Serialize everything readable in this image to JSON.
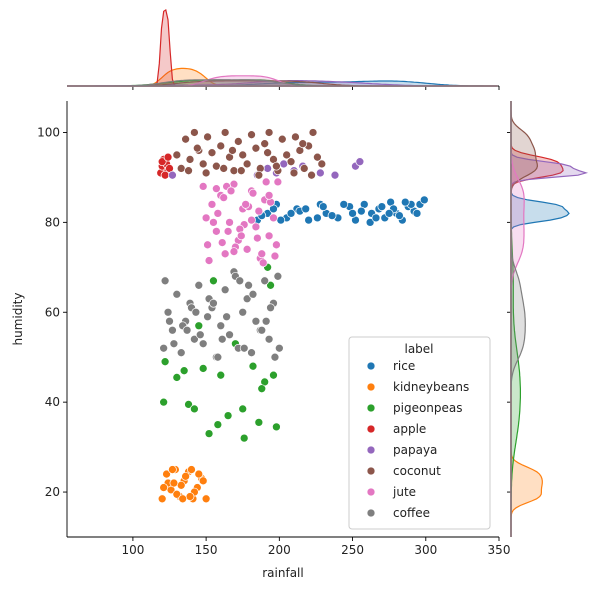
{
  "chart_data": {
    "type": "scatter",
    "title": "",
    "xlabel": "rainfall",
    "ylabel": "humidity",
    "xlim": [
      55,
      350
    ],
    "ylim": [
      10,
      107
    ],
    "xticks": [
      100,
      150,
      200,
      250,
      300,
      350
    ],
    "yticks": [
      20,
      40,
      60,
      80,
      100
    ],
    "grid": false,
    "legend": {
      "title": "label",
      "placement": "lower-right"
    },
    "marginal": {
      "top": "kde of rainfall per label",
      "right": "kde of humidity per label"
    },
    "series": [
      {
        "name": "rice",
        "color": "#1f77b4",
        "x": [
          185,
          192,
          198,
          205,
          212,
          220,
          228,
          232,
          240,
          248,
          252,
          258,
          263,
          268,
          272,
          276,
          280,
          284,
          288,
          292,
          296,
          299,
          196,
          214,
          236,
          256,
          270,
          282,
          290,
          208,
          226,
          244,
          262,
          278,
          294,
          188,
          218,
          250,
          286,
          201,
          230,
          266,
          275
        ],
        "y": [
          80.5,
          82,
          84,
          81,
          83,
          80.5,
          84,
          82,
          81,
          83.5,
          80.5,
          84,
          82,
          83,
          81,
          84.5,
          82,
          80.5,
          83.5,
          82.5,
          84,
          85,
          83,
          82.5,
          81.5,
          82.5,
          83.5,
          81.5,
          84,
          82,
          81,
          84,
          80,
          83,
          82,
          81.5,
          83,
          82,
          84.5,
          80.5,
          83.5,
          81,
          82
        ]
      },
      {
        "name": "kidneybeans",
        "color": "#ff7f0e",
        "x": [
          120,
          123,
          126,
          129,
          132,
          135,
          138,
          141,
          144,
          147,
          150,
          124,
          130,
          136,
          142,
          148,
          127,
          133,
          139,
          145,
          121,
          134,
          140,
          128
        ],
        "y": [
          18.5,
          24,
          20.5,
          25,
          19,
          22.5,
          24.5,
          18.5,
          21,
          23,
          18.5,
          22,
          19.5,
          23.5,
          20,
          22.5,
          25,
          21.5,
          19,
          24,
          21,
          18.5,
          25,
          22
        ]
      },
      {
        "name": "pigeonpeas",
        "color": "#2ca02c",
        "x": [
          121,
          122,
          130,
          138,
          142,
          152,
          158,
          176,
          186,
          190,
          196,
          198,
          160,
          148,
          135,
          170,
          182,
          188,
          194,
          165,
          155,
          145,
          175,
          192
        ],
        "y": [
          40,
          49,
          45.5,
          39.5,
          38.5,
          33,
          35,
          32,
          35.5,
          44.5,
          46,
          34.5,
          46,
          47.5,
          47,
          53,
          48,
          43,
          66,
          37,
          67,
          57,
          38.5,
          70
        ]
      },
      {
        "name": "apple",
        "color": "#d62728",
        "x": [
          119,
          120,
          121,
          122,
          123,
          124,
          125,
          120,
          122,
          124
        ],
        "y": [
          91,
          92.5,
          94,
          90.5,
          93,
          91.5,
          92,
          93.5,
          90.5,
          94.5
        ]
      },
      {
        "name": "papaya",
        "color": "#9467bd",
        "x": [
          127,
          192,
          198,
          203,
          210,
          216,
          228,
          238,
          252,
          255,
          185
        ],
        "y": [
          90.5,
          92,
          91,
          93,
          91.5,
          92.5,
          91,
          90.5,
          92.5,
          93.5,
          90.5
        ]
      },
      {
        "name": "coconut",
        "color": "#8c564b",
        "x": [
          130,
          133,
          136,
          139,
          142,
          145,
          148,
          151,
          154,
          157,
          160,
          163,
          166,
          169,
          172,
          175,
          178,
          181,
          184,
          187,
          190,
          193,
          196,
          199,
          202,
          205,
          208,
          211,
          214,
          217,
          220,
          223,
          226,
          229,
          138,
          150,
          162,
          174,
          186,
          198,
          210,
          222,
          144,
          168,
          192,
          216
        ],
        "y": [
          95,
          92,
          98.5,
          94,
          100,
          96,
          93,
          99,
          95.5,
          92.5,
          97,
          100,
          94.5,
          91.5,
          98,
          95,
          93,
          99.5,
          96.5,
          92,
          97.5,
          100,
          94,
          91.5,
          98.5,
          95,
          93.5,
          99,
          96,
          92,
          97,
          100,
          94.5,
          93,
          91.5,
          91,
          92,
          91.5,
          90.5,
          92.5,
          91,
          90.5,
          96.5,
          96,
          95.5,
          97.5
        ]
      },
      {
        "name": "jute",
        "color": "#e377c2",
        "x": [
          148,
          151,
          154,
          157,
          160,
          163,
          166,
          169,
          172,
          175,
          178,
          181,
          184,
          187,
          190,
          193,
          196,
          199,
          152,
          158,
          164,
          170,
          176,
          182,
          188,
          194,
          155,
          161,
          167,
          173,
          179,
          185,
          191,
          197,
          150,
          162,
          174,
          186,
          198,
          157,
          169,
          181,
          193,
          165,
          177,
          189
        ],
        "y": [
          88,
          75,
          84,
          78,
          86,
          73,
          80,
          88.5,
          76,
          83,
          74,
          87,
          79,
          72,
          85,
          77,
          81,
          89,
          71.5,
          82,
          88,
          74.5,
          79.5,
          86.5,
          73,
          84.5,
          80,
          75.5,
          87,
          78.5,
          83.5,
          76.5,
          89,
          72.5,
          81,
          85.5,
          77,
          82.5,
          75,
          87.5,
          73.5,
          80.5,
          86,
          78,
          84,
          71
        ]
      },
      {
        "name": "coffee",
        "color": "#7f7f7f",
        "x": [
          121,
          124,
          127,
          130,
          133,
          136,
          139,
          142,
          145,
          148,
          151,
          154,
          157,
          160,
          163,
          166,
          169,
          172,
          175,
          178,
          181,
          184,
          187,
          190,
          193,
          196,
          199,
          122,
          128,
          134,
          140,
          146,
          152,
          158,
          164,
          170,
          176,
          182,
          188,
          194,
          200,
          125,
          143,
          161,
          179,
          197,
          137,
          155,
          173,
          191
        ],
        "y": [
          52,
          60,
          56,
          64,
          51,
          58,
          62,
          54,
          66,
          53,
          59,
          61,
          50,
          57,
          65,
          55,
          69,
          52,
          60,
          63,
          51,
          58,
          56,
          67,
          54,
          62,
          68,
          67,
          53,
          57,
          61,
          55,
          63,
          50,
          59,
          68,
          52,
          64,
          56,
          61,
          52,
          58,
          60,
          54,
          66,
          50,
          56,
          62,
          67,
          58
        ]
      }
    ]
  }
}
